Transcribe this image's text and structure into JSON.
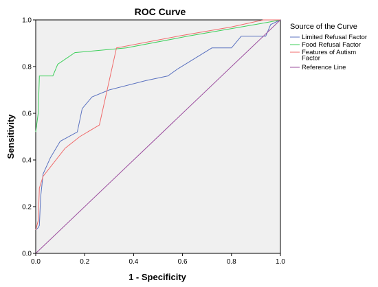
{
  "chart_data": {
    "type": "line",
    "title": "ROC Curve",
    "xlabel": "1 - Specificity",
    "ylabel": "Sensitivity",
    "xlim": [
      0.0,
      1.0
    ],
    "ylim": [
      0.0,
      1.0
    ],
    "xticks": [
      "0.0",
      "0.2",
      "0.4",
      "0.6",
      "0.8",
      "1.0"
    ],
    "yticks": [
      "0.0",
      "0.2",
      "0.4",
      "0.6",
      "0.8",
      "1.0"
    ],
    "grid": false,
    "legend": {
      "title": "Source of the Curve",
      "placement": "right"
    },
    "series": [
      {
        "name": "Limited Refusal Factor",
        "color": "#5b72c0",
        "points": [
          [
            0,
            0.1
          ],
          [
            0.01,
            0.11
          ],
          [
            0.015,
            0.12
          ],
          [
            0.02,
            0.24
          ],
          [
            0.03,
            0.34
          ],
          [
            0.06,
            0.41
          ],
          [
            0.1,
            0.48
          ],
          [
            0.17,
            0.52
          ],
          [
            0.19,
            0.62
          ],
          [
            0.23,
            0.67
          ],
          [
            0.3,
            0.7
          ],
          [
            0.45,
            0.74
          ],
          [
            0.54,
            0.76
          ],
          [
            0.58,
            0.79
          ],
          [
            0.72,
            0.88
          ],
          [
            0.8,
            0.88
          ],
          [
            0.84,
            0.93
          ],
          [
            0.94,
            0.93
          ],
          [
            0.96,
            0.98
          ],
          [
            1.0,
            1.0
          ]
        ]
      },
      {
        "name": "Food Refusal Factor",
        "color": "#3ccf5a",
        "points": [
          [
            0,
            0.52
          ],
          [
            0.01,
            0.6
          ],
          [
            0.015,
            0.76
          ],
          [
            0.05,
            0.76
          ],
          [
            0.07,
            0.76
          ],
          [
            0.09,
            0.81
          ],
          [
            0.16,
            0.86
          ],
          [
            0.37,
            0.88
          ],
          [
            0.62,
            0.93
          ],
          [
            0.95,
            0.99
          ],
          [
            1.0,
            1.0
          ]
        ]
      },
      {
        "name": "Features of Autism Factor",
        "color": "#f06a6a",
        "points": [
          [
            0,
            0.1
          ],
          [
            0.01,
            0.14
          ],
          [
            0.015,
            0.28
          ],
          [
            0.03,
            0.33
          ],
          [
            0.12,
            0.45
          ],
          [
            0.18,
            0.5
          ],
          [
            0.26,
            0.55
          ],
          [
            0.33,
            0.88
          ],
          [
            0.58,
            0.93
          ],
          [
            0.8,
            0.97
          ],
          [
            0.93,
            1.0
          ],
          [
            1.0,
            1.0
          ]
        ]
      },
      {
        "name": "Features of Autism Factor",
        "legend_lines": [
          "Features of Autism",
          "Factor"
        ]
      },
      {
        "name": "Reference Line",
        "color": "#9b4d9e",
        "points": [
          [
            0,
            0
          ],
          [
            1,
            1
          ]
        ]
      }
    ]
  }
}
